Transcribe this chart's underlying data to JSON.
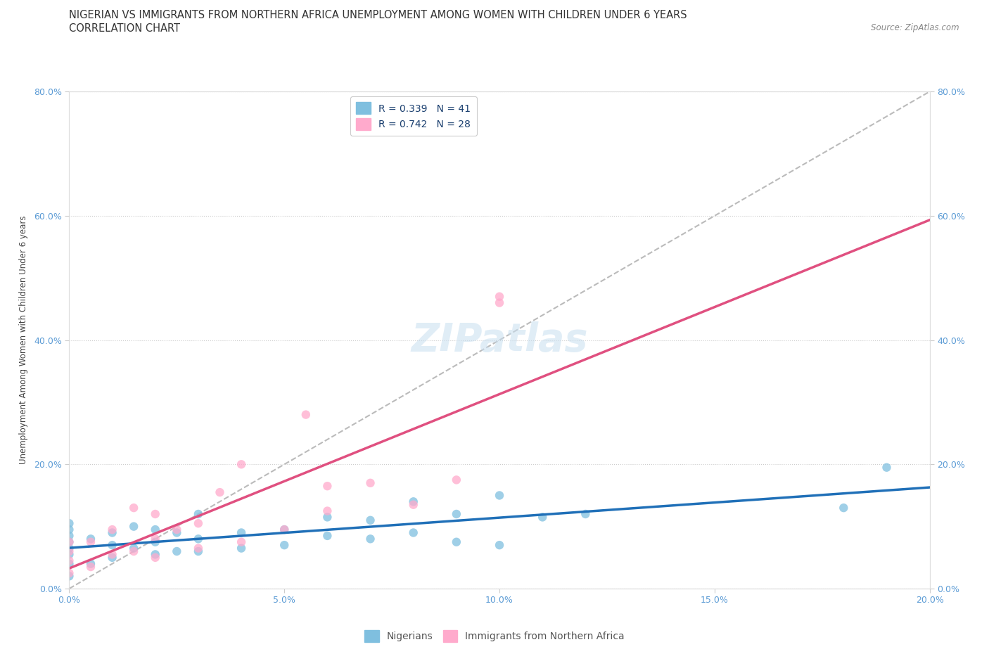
{
  "title_line1": "NIGERIAN VS IMMIGRANTS FROM NORTHERN AFRICA UNEMPLOYMENT AMONG WOMEN WITH CHILDREN UNDER 6 YEARS",
  "title_line2": "CORRELATION CHART",
  "source": "Source: ZipAtlas.com",
  "ylabel": "Unemployment Among Women with Children Under 6 years",
  "xlim": [
    0.0,
    0.2
  ],
  "ylim": [
    0.0,
    0.8
  ],
  "xtick_labels": [
    "0.0%",
    "5.0%",
    "10.0%",
    "15.0%",
    "20.0%"
  ],
  "ytick_labels": [
    "0.0%",
    "20.0%",
    "40.0%",
    "60.0%",
    "80.0%"
  ],
  "xtick_vals": [
    0.0,
    0.05,
    0.1,
    0.15,
    0.2
  ],
  "ytick_vals": [
    0.0,
    0.2,
    0.4,
    0.6,
    0.8
  ],
  "legend_entries": [
    "Nigerians",
    "Immigrants from Northern Africa"
  ],
  "R_nigerian": 0.339,
  "N_nigerian": 41,
  "R_northern_africa": 0.742,
  "N_northern_africa": 28,
  "color_nigerian": "#7fbfdf",
  "color_northern_africa": "#ffaacc",
  "color_nigerian_line": "#2070b8",
  "color_northern_africa_line": "#e05080",
  "color_diagonal": "#bbbbbb",
  "watermark": "ZIPatlas",
  "nigerian_x": [
    0.0,
    0.0,
    0.0,
    0.0,
    0.0,
    0.0,
    0.0,
    0.0,
    0.005,
    0.005,
    0.01,
    0.01,
    0.01,
    0.015,
    0.015,
    0.02,
    0.02,
    0.02,
    0.025,
    0.025,
    0.03,
    0.03,
    0.03,
    0.04,
    0.04,
    0.05,
    0.05,
    0.06,
    0.06,
    0.07,
    0.07,
    0.08,
    0.08,
    0.09,
    0.09,
    0.1,
    0.1,
    0.11,
    0.12,
    0.18,
    0.19
  ],
  "nigerian_y": [
    0.02,
    0.04,
    0.055,
    0.065,
    0.075,
    0.085,
    0.095,
    0.105,
    0.04,
    0.08,
    0.05,
    0.07,
    0.09,
    0.065,
    0.1,
    0.055,
    0.075,
    0.095,
    0.06,
    0.09,
    0.06,
    0.08,
    0.12,
    0.065,
    0.09,
    0.07,
    0.095,
    0.085,
    0.115,
    0.08,
    0.11,
    0.09,
    0.14,
    0.075,
    0.12,
    0.07,
    0.15,
    0.115,
    0.12,
    0.13,
    0.195
  ],
  "northern_africa_x": [
    0.0,
    0.0,
    0.0,
    0.0,
    0.005,
    0.005,
    0.01,
    0.01,
    0.015,
    0.015,
    0.02,
    0.02,
    0.02,
    0.025,
    0.03,
    0.03,
    0.035,
    0.04,
    0.04,
    0.05,
    0.055,
    0.06,
    0.06,
    0.07,
    0.08,
    0.09,
    0.1,
    0.1
  ],
  "northern_africa_y": [
    0.025,
    0.045,
    0.06,
    0.075,
    0.035,
    0.075,
    0.055,
    0.095,
    0.06,
    0.13,
    0.05,
    0.08,
    0.12,
    0.095,
    0.065,
    0.105,
    0.155,
    0.075,
    0.2,
    0.095,
    0.28,
    0.125,
    0.165,
    0.17,
    0.135,
    0.175,
    0.46,
    0.47
  ],
  "background_color": "#ffffff",
  "title_fontsize": 10.5,
  "subtitle_fontsize": 10.5,
  "axis_label_fontsize": 8.5,
  "tick_fontsize": 9,
  "legend_fontsize": 10,
  "watermark_fontsize": 40,
  "watermark_color": "#c8dff0",
  "watermark_alpha": 0.55,
  "tick_color": "#5b9bd5",
  "label_color": "#444444",
  "source_color": "#888888"
}
